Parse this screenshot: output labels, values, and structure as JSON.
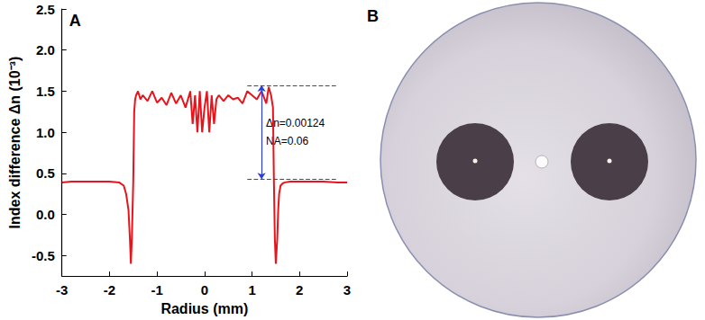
{
  "chart_data": {
    "type": "line",
    "panel_label": "A",
    "x_label": "Radius (mm)",
    "y_label": "Index difference Δn (10⁻³)",
    "color": "#e8141c",
    "grid": false,
    "xlim": [
      -3,
      3
    ],
    "xticks": [
      -3,
      -2,
      -1,
      0,
      1,
      2,
      3
    ],
    "ylim": [
      -0.75,
      2.5
    ],
    "yticks": [
      -0.5,
      {
        "value": 0,
        "label": "0.0"
      },
      0.5,
      {
        "value": 1,
        "label": "1.0"
      },
      1.5,
      {
        "value": 2,
        "label": "2.0"
      },
      2.5
    ],
    "x": [
      -3,
      -2.8,
      -2.5,
      -2.2,
      -2.0,
      -1.8,
      -1.7,
      -1.65,
      -1.6,
      -1.57,
      -1.55,
      -1.53,
      -1.5,
      -1.48,
      -1.46,
      -1.44,
      -1.4,
      -1.35,
      -1.3,
      -1.2,
      -1.1,
      -1.0,
      -0.9,
      -0.8,
      -0.7,
      -0.6,
      -0.5,
      -0.4,
      -0.3,
      -0.25,
      -0.2,
      -0.15,
      -0.1,
      -0.05,
      0,
      0.05,
      0.1,
      0.15,
      0.2,
      0.25,
      0.3,
      0.4,
      0.5,
      0.6,
      0.7,
      0.8,
      0.9,
      1.0,
      1.1,
      1.2,
      1.3,
      1.35,
      1.4,
      1.44,
      1.46,
      1.48,
      1.5,
      1.53,
      1.55,
      1.57,
      1.6,
      1.65,
      1.7,
      1.8,
      2.0,
      2.2,
      2.5,
      2.8,
      3
    ],
    "values": [
      0.39,
      0.4,
      0.4,
      0.4,
      0.4,
      0.39,
      0.35,
      0.25,
      0.05,
      -0.3,
      -0.6,
      -0.3,
      0.4,
      1.25,
      1.4,
      1.45,
      1.5,
      1.4,
      1.45,
      1.38,
      1.5,
      1.36,
      1.42,
      1.33,
      1.48,
      1.35,
      1.45,
      1.3,
      1.5,
      1.1,
      1.45,
      1.0,
      1.5,
      1.0,
      1.3,
      1.5,
      1.0,
      1.45,
      1.1,
      1.4,
      1.45,
      1.38,
      1.45,
      1.4,
      1.42,
      1.35,
      1.5,
      1.45,
      1.4,
      1.5,
      1.35,
      1.55,
      1.45,
      1.3,
      0.4,
      -0.3,
      -0.6,
      -0.3,
      0.05,
      0.25,
      0.35,
      0.38,
      0.39,
      0.4,
      0.4,
      0.4,
      0.4,
      0.39,
      0.39
    ],
    "annotation": {
      "texts": [
        "Δn=0.00124",
        "NA=0.06"
      ],
      "levels": [
        1.57,
        0.43
      ],
      "x_range": [
        0.9,
        2.8
      ],
      "arrow_x": 1.2,
      "color": "#2b3fd6"
    },
    "image_panel": {
      "label": "B"
    }
  }
}
